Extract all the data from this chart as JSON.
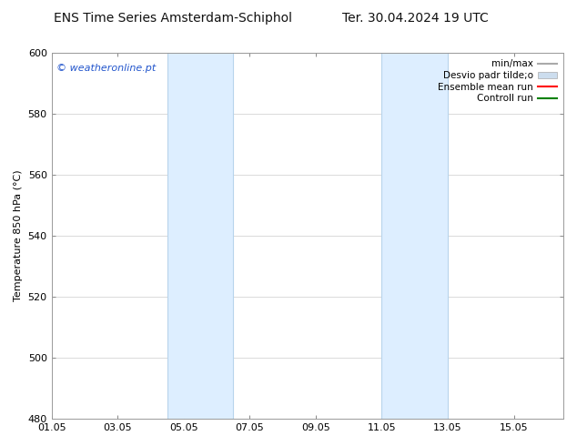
{
  "title_left": "ENS Time Series Amsterdam-Schiphol",
  "title_right": "Ter. 30.04.2024 19 UTC",
  "ylabel": "Temperature 850 hPa (°C)",
  "ylim": [
    480,
    600
  ],
  "yticks": [
    480,
    500,
    520,
    540,
    560,
    580,
    600
  ],
  "xtick_labels": [
    "01.05",
    "03.05",
    "05.05",
    "07.05",
    "09.05",
    "11.05",
    "13.05",
    "15.05"
  ],
  "xtick_positions": [
    0,
    2,
    4,
    6,
    8,
    10,
    12,
    14
  ],
  "xlim": [
    0,
    15.5
  ],
  "shaded_bands": [
    {
      "xstart": 3.5,
      "xend": 5.5
    },
    {
      "xstart": 10.0,
      "xend": 12.0
    }
  ],
  "shaded_color": "#ddeeff",
  "shaded_edge_color": "#b8d4ec",
  "watermark_text": "© weatheronline.pt",
  "watermark_color": "#2255cc",
  "legend_entries": [
    {
      "label": "min/max",
      "color": "#aaaaaa",
      "lw": 1.5
    },
    {
      "label": "Desvio padr tilde;o",
      "color": "#ccddee",
      "lw": 8
    },
    {
      "label": "Ensemble mean run",
      "color": "red",
      "lw": 1.5
    },
    {
      "label": "Controll run",
      "color": "green",
      "lw": 1.5
    }
  ],
  "bg_color": "#ffffff",
  "grid_color": "#cccccc",
  "title_fontsize": 10,
  "axis_fontsize": 8,
  "tick_fontsize": 8,
  "watermark_fontsize": 8
}
